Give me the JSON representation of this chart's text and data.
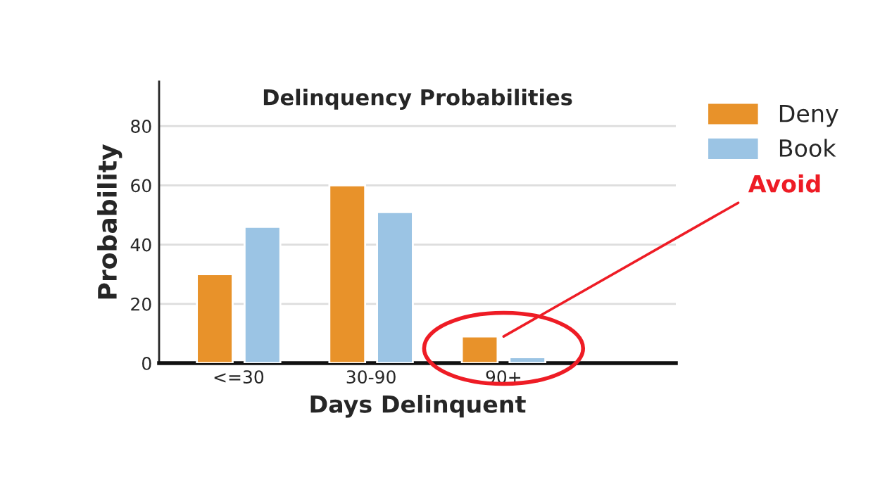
{
  "chart_data": {
    "type": "bar",
    "title": "Delinquency Probabilities",
    "xlabel": "Days Delinquent",
    "ylabel": "Probability",
    "categories": [
      "<=30",
      "30-90",
      "90+"
    ],
    "series": [
      {
        "name": "Deny",
        "color": "#e8922a",
        "values": [
          30,
          60,
          9
        ]
      },
      {
        "name": "Book",
        "color": "#9bc4e4",
        "values": [
          46,
          51,
          2
        ]
      }
    ],
    "ylim": [
      0,
      95
    ],
    "yticks": [
      0,
      20,
      40,
      60,
      80
    ],
    "grid": "y",
    "legend": "top right",
    "annotations": [
      {
        "text": "Avoid",
        "x": "90+",
        "y": 9
      }
    ]
  }
}
